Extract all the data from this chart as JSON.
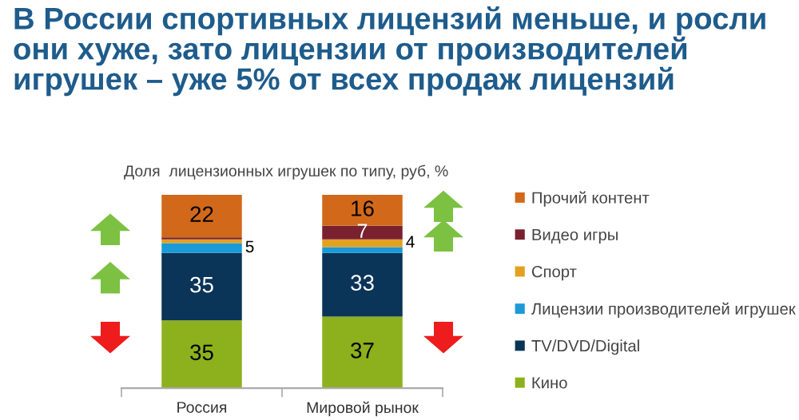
{
  "chart_data": {
    "type": "bar",
    "stacked": true,
    "title": "В России спортивных лицензий меньше, и росли они хуже, зато лицензии от производителей игрушек – уже 5% от всех продаж лицензий",
    "subtitle": "Доля  лицензионных игрушек по типу, руб, %",
    "categories": [
      "Россия",
      "Мировой рынок"
    ],
    "legend": "right",
    "grid": false,
    "series": [
      {
        "name": "Кино",
        "color": "#8db11c",
        "values": [
          35,
          37
        ],
        "value_labels": [
          "35",
          "37"
        ]
      },
      {
        "name": "TV/DVD/Digital",
        "color": "#0b3558",
        "values": [
          35,
          33
        ],
        "value_labels": [
          "35",
          "33"
        ]
      },
      {
        "name": "Лицензии производителей игрушек",
        "color": "#1a9ad6",
        "values": [
          5,
          3
        ],
        "value_labels": [
          "5",
          null
        ]
      },
      {
        "name": "Спорт",
        "color": "#e3a021",
        "values": [
          2,
          4
        ],
        "value_labels": [
          null,
          "4"
        ]
      },
      {
        "name": "Видео игры",
        "color": "#7a2130",
        "values": [
          1,
          7
        ],
        "value_labels": [
          null,
          "7"
        ]
      },
      {
        "name": "Прочий контент",
        "color": "#d2691a",
        "values": [
          22,
          16
        ],
        "value_labels": [
          "22",
          "16"
        ]
      }
    ]
  }
}
